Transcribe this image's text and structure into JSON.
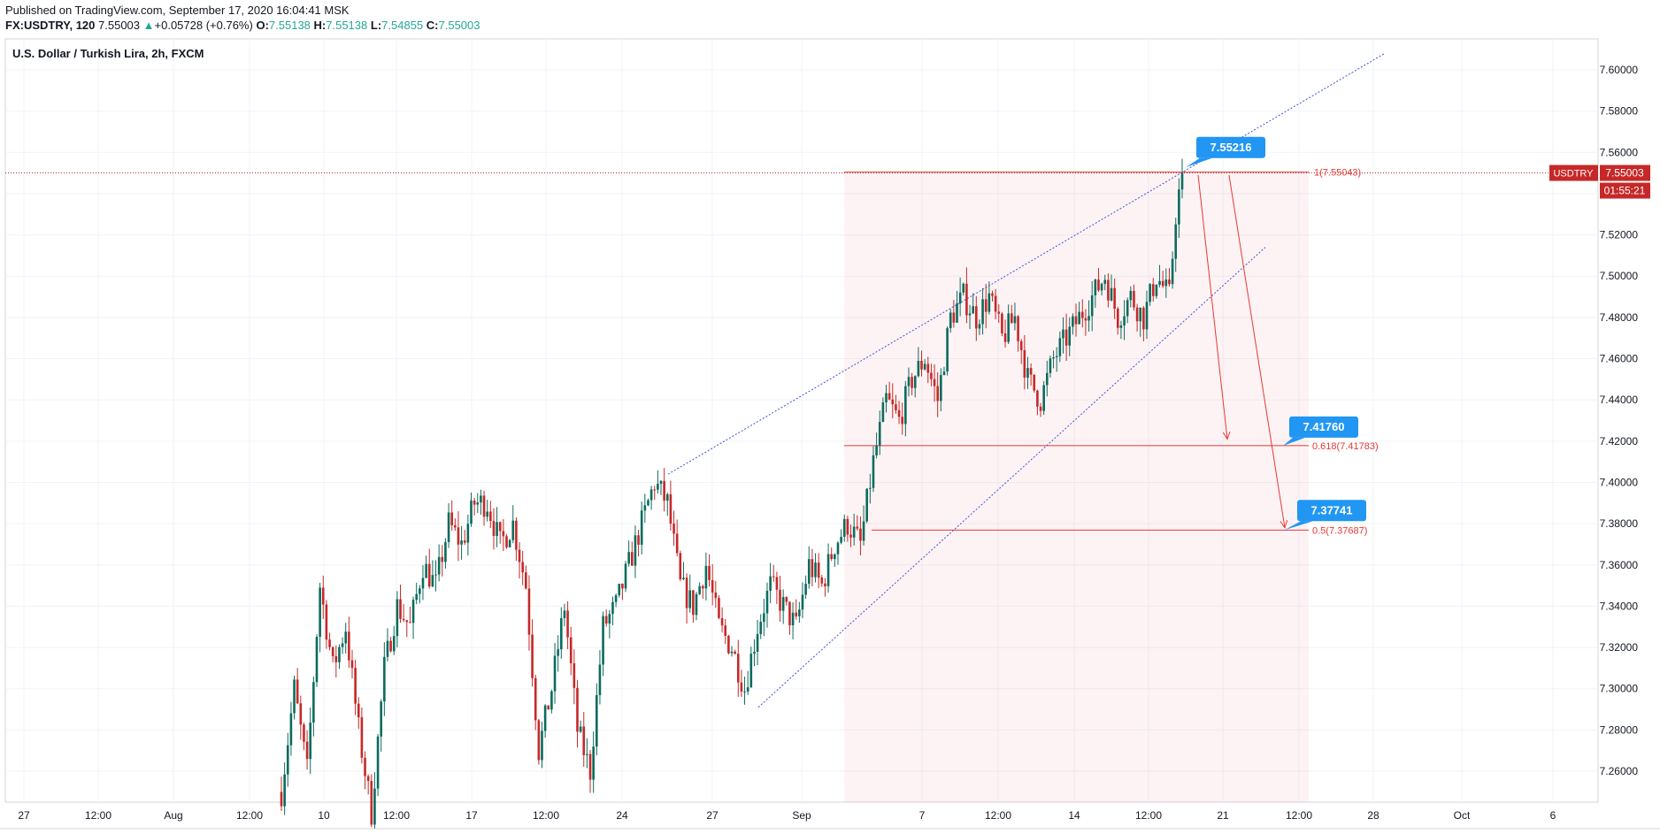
{
  "header": {
    "published": "Published on TradingView.com, September 17, 2020 16:04:41 MSK",
    "symbol": "FX:USDTRY, 120",
    "last": "7.55003",
    "change_arrow": "▲",
    "change": "+0.05728 (+0.76%)",
    "o_label": "O:",
    "o_value": "7.55138",
    "h_label": "H:",
    "h_value": "7.55138",
    "l_label": "L:",
    "l_value": "7.54855",
    "c_label": "C:",
    "c_value": "7.55003"
  },
  "chart_data": {
    "type": "candlestick",
    "title": "U.S. Dollar / Turkish Lira, 2h, FXCM",
    "ylim": [
      7.245,
      7.615
    ],
    "y_ticks": [
      "7.26000",
      "7.28000",
      "7.30000",
      "7.32000",
      "7.34000",
      "7.36000",
      "7.38000",
      "7.40000",
      "7.42000",
      "7.44000",
      "7.46000",
      "7.48000",
      "7.50000",
      "7.52000",
      "7.54000",
      "7.56000",
      "7.58000",
      "7.60000"
    ],
    "x_ticks": [
      "27",
      "12:00",
      "Aug",
      "12:00",
      "10",
      "12:00",
      "17",
      "12:00",
      "24",
      "27",
      "Sep",
      "7",
      "12:00",
      "14",
      "12:00",
      "21",
      "12:00",
      "28",
      "Oct",
      "6"
    ],
    "price_path": [
      [
        0,
        7.25
      ],
      [
        4,
        7.3
      ],
      [
        8,
        7.26
      ],
      [
        12,
        7.35
      ],
      [
        16,
        7.31
      ],
      [
        20,
        7.33
      ],
      [
        24,
        7.28
      ],
      [
        28,
        7.24
      ],
      [
        32,
        7.31
      ],
      [
        36,
        7.34
      ],
      [
        40,
        7.33
      ],
      [
        44,
        7.36
      ],
      [
        48,
        7.35
      ],
      [
        52,
        7.38
      ],
      [
        56,
        7.37
      ],
      [
        60,
        7.39
      ],
      [
        64,
        7.39
      ],
      [
        68,
        7.37
      ],
      [
        72,
        7.38
      ],
      [
        76,
        7.35
      ],
      [
        80,
        7.27
      ],
      [
        84,
        7.3
      ],
      [
        88,
        7.34
      ],
      [
        92,
        7.28
      ],
      [
        96,
        7.26
      ],
      [
        100,
        7.33
      ],
      [
        104,
        7.34
      ],
      [
        108,
        7.36
      ],
      [
        112,
        7.38
      ],
      [
        116,
        7.4
      ],
      [
        120,
        7.39
      ],
      [
        124,
        7.35
      ],
      [
        128,
        7.34
      ],
      [
        132,
        7.36
      ],
      [
        136,
        7.33
      ],
      [
        140,
        7.32
      ],
      [
        144,
        7.3
      ],
      [
        148,
        7.33
      ],
      [
        152,
        7.35
      ],
      [
        156,
        7.34
      ],
      [
        160,
        7.33
      ],
      [
        164,
        7.36
      ],
      [
        168,
        7.35
      ],
      [
        172,
        7.37
      ],
      [
        176,
        7.38
      ],
      [
        180,
        7.37
      ],
      [
        184,
        7.41
      ],
      [
        188,
        7.44
      ],
      [
        192,
        7.43
      ],
      [
        196,
        7.45
      ],
      [
        200,
        7.46
      ],
      [
        204,
        7.44
      ],
      [
        208,
        7.48
      ],
      [
        212,
        7.49
      ],
      [
        216,
        7.48
      ],
      [
        220,
        7.49
      ],
      [
        224,
        7.47
      ],
      [
        228,
        7.48
      ],
      [
        232,
        7.45
      ],
      [
        236,
        7.44
      ],
      [
        240,
        7.46
      ],
      [
        244,
        7.47
      ],
      [
        248,
        7.48
      ],
      [
        252,
        7.49
      ],
      [
        256,
        7.5
      ],
      [
        260,
        7.48
      ],
      [
        264,
        7.49
      ],
      [
        268,
        7.48
      ],
      [
        272,
        7.5
      ],
      [
        276,
        7.49
      ],
      [
        278,
        7.53
      ],
      [
        280,
        7.55003
      ]
    ],
    "current_price": "7.55003",
    "symbol_badge": "USDTRY",
    "countdown": "01:55:21",
    "fib_levels": [
      {
        "label": "1(7.55043)",
        "value": 7.55043
      },
      {
        "label": "0.618(7.41783)",
        "value": 7.41783
      },
      {
        "label": "0.5(7.37687)",
        "value": 7.37687
      }
    ],
    "callouts": [
      "7.55216",
      "7.41760",
      "7.37741"
    ]
  }
}
